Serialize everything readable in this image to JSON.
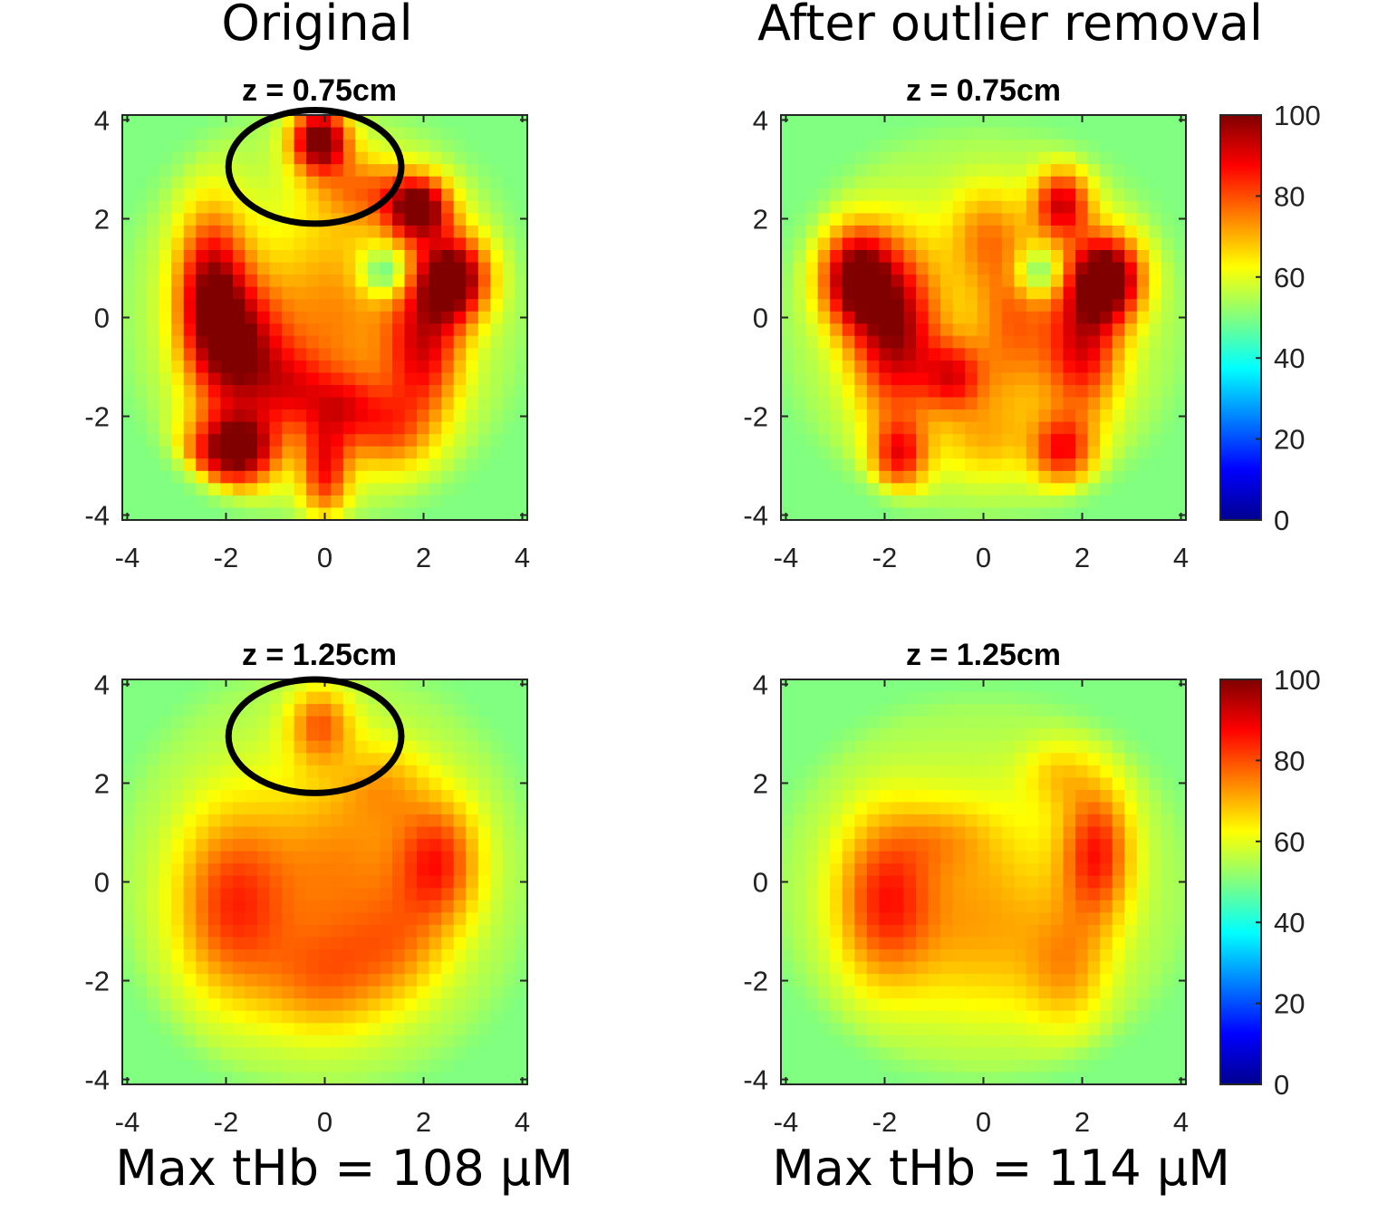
{
  "figure": {
    "column_titles": [
      "Original",
      "After outlier removal"
    ],
    "footers": [
      "Max tHb = 108 µM",
      "Max tHb = 114 µM"
    ]
  },
  "colors": {
    "colormap": "jet",
    "annotation_ellipse": "#000000",
    "background_low": "#80ff80"
  },
  "chart_data": [
    {
      "type": "heatmap",
      "title": "z = 0.75cm",
      "column": "Original",
      "xlim": [
        -4.1,
        4.1
      ],
      "ylim": [
        -4.1,
        4.1
      ],
      "xticks": [
        -4,
        -2,
        0,
        2,
        4
      ],
      "yticks": [
        -4,
        -2,
        0,
        2,
        4
      ],
      "clim": [
        0,
        100
      ],
      "grid": false,
      "base_value": 50,
      "mask": {
        "center": [
          0,
          0.1
        ],
        "radius_x": 3.9,
        "radius_y": 4.0
      },
      "blobs": [
        {
          "x": -2.3,
          "y": 0.4,
          "sx": 0.5,
          "sy": 1.2,
          "amp": 42
        },
        {
          "x": -1.6,
          "y": -0.8,
          "sx": 0.6,
          "sy": 1.0,
          "amp": 34
        },
        {
          "x": -2.1,
          "y": -2.7,
          "sx": 0.6,
          "sy": 0.5,
          "amp": 28
        },
        {
          "x": -1.6,
          "y": -2.7,
          "sx": 0.5,
          "sy": 0.5,
          "amp": 26
        },
        {
          "x": 0.0,
          "y": -3.1,
          "sx": 0.35,
          "sy": 0.7,
          "amp": 30
        },
        {
          "x": 0.4,
          "y": -1.8,
          "sx": 0.5,
          "sy": 0.5,
          "amp": 18
        },
        {
          "x": -0.6,
          "y": -1.5,
          "sx": 0.5,
          "sy": 0.6,
          "amp": 18
        },
        {
          "x": 1.9,
          "y": 2.2,
          "sx": 0.45,
          "sy": 0.45,
          "amp": 48
        },
        {
          "x": 2.6,
          "y": 0.8,
          "sx": 0.5,
          "sy": 0.6,
          "amp": 50
        },
        {
          "x": 2.0,
          "y": -0.6,
          "sx": 0.55,
          "sy": 1.0,
          "amp": 32
        },
        {
          "x": 1.3,
          "y": -2.3,
          "sx": 0.6,
          "sy": 0.6,
          "amp": 20
        },
        {
          "x": -0.1,
          "y": 3.6,
          "sx": 0.4,
          "sy": 0.45,
          "amp": 52
        },
        {
          "x": 0.8,
          "y": 2.6,
          "sx": 0.7,
          "sy": 0.5,
          "amp": 18
        },
        {
          "x": 0.2,
          "y": 0.0,
          "sx": 0.8,
          "sy": 1.4,
          "amp": 12
        },
        {
          "x": 1.2,
          "y": 0.9,
          "sx": 0.35,
          "sy": 0.35,
          "amp": -20
        }
      ],
      "annotation": {
        "shape": "ellipse",
        "cx": -0.2,
        "cy": 3.05,
        "rx": 1.75,
        "ry": 1.15
      }
    },
    {
      "type": "heatmap",
      "title": "z = 0.75cm",
      "column": "After outlier removal",
      "xlim": [
        -4.1,
        4.1
      ],
      "ylim": [
        -4.1,
        4.1
      ],
      "xticks": [
        -4,
        -2,
        0,
        2,
        4
      ],
      "yticks": [
        -4,
        -2,
        0,
        2,
        4
      ],
      "clim": [
        0,
        100
      ],
      "grid": false,
      "base_value": 50,
      "mask": {
        "center": [
          0,
          -0.1
        ],
        "radius_x": 3.9,
        "radius_y": 3.7
      },
      "blobs": [
        {
          "x": -2.6,
          "y": 0.8,
          "sx": 0.5,
          "sy": 0.7,
          "amp": 45
        },
        {
          "x": -1.8,
          "y": -0.3,
          "sx": 0.6,
          "sy": 1.2,
          "amp": 38
        },
        {
          "x": -1.7,
          "y": -2.8,
          "sx": 0.4,
          "sy": 0.5,
          "amp": 30
        },
        {
          "x": -0.6,
          "y": -1.2,
          "sx": 0.45,
          "sy": 0.5,
          "amp": 26
        },
        {
          "x": 0.0,
          "y": 1.7,
          "sx": 0.5,
          "sy": 0.7,
          "amp": 14
        },
        {
          "x": 0.0,
          "y": -2.5,
          "sx": 0.6,
          "sy": 0.6,
          "amp": 12
        },
        {
          "x": 1.6,
          "y": 2.3,
          "sx": 0.4,
          "sy": 0.5,
          "amp": 36
        },
        {
          "x": 2.5,
          "y": 0.8,
          "sx": 0.5,
          "sy": 0.6,
          "amp": 52
        },
        {
          "x": 2.0,
          "y": -0.6,
          "sx": 0.55,
          "sy": 1.0,
          "amp": 32
        },
        {
          "x": 1.6,
          "y": -2.7,
          "sx": 0.45,
          "sy": 0.5,
          "amp": 30
        },
        {
          "x": 0.6,
          "y": 0.0,
          "sx": 0.5,
          "sy": 1.2,
          "amp": 16
        },
        {
          "x": 1.1,
          "y": 0.9,
          "sx": 0.35,
          "sy": 0.35,
          "amp": -20
        }
      ]
    },
    {
      "type": "heatmap",
      "title": "z = 1.25cm",
      "column": "Original",
      "xlim": [
        -4.1,
        4.1
      ],
      "ylim": [
        -4.1,
        4.1
      ],
      "xticks": [
        -4,
        -2,
        0,
        2,
        4
      ],
      "yticks": [
        -4,
        -2,
        0,
        2,
        4
      ],
      "clim": [
        0,
        100
      ],
      "grid": false,
      "base_value": 50,
      "mask": {
        "center": [
          0,
          0.1
        ],
        "radius_x": 4.0,
        "radius_y": 4.1
      },
      "blobs": [
        {
          "x": -1.9,
          "y": -0.5,
          "sx": 0.8,
          "sy": 1.3,
          "amp": 24
        },
        {
          "x": 2.3,
          "y": 0.4,
          "sx": 0.6,
          "sy": 0.9,
          "amp": 26
        },
        {
          "x": -0.1,
          "y": 3.2,
          "sx": 0.45,
          "sy": 0.55,
          "amp": 22
        },
        {
          "x": 0.0,
          "y": -2.0,
          "sx": 0.9,
          "sy": 0.8,
          "amp": 16
        },
        {
          "x": 0.3,
          "y": 0.3,
          "sx": 1.0,
          "sy": 1.3,
          "amp": 12
        },
        {
          "x": 1.5,
          "y": -1.3,
          "sx": 0.7,
          "sy": 0.8,
          "amp": 12
        },
        {
          "x": 1.2,
          "y": 2.0,
          "sx": 0.6,
          "sy": 0.6,
          "amp": 10
        }
      ],
      "annotation": {
        "shape": "ellipse",
        "cx": -0.2,
        "cy": 2.95,
        "rx": 1.75,
        "ry": 1.15
      }
    },
    {
      "type": "heatmap",
      "title": "z = 1.25cm",
      "column": "After outlier removal",
      "xlim": [
        -4.1,
        4.1
      ],
      "ylim": [
        -4.1,
        4.1
      ],
      "xticks": [
        -4,
        -2,
        0,
        2,
        4
      ],
      "yticks": [
        -4,
        -2,
        0,
        2,
        4
      ],
      "clim": [
        0,
        100
      ],
      "grid": false,
      "base_value": 50,
      "mask": {
        "center": [
          0,
          -0.1
        ],
        "radius_x": 4.0,
        "radius_y": 3.6
      },
      "blobs": [
        {
          "x": -2.0,
          "y": -0.4,
          "sx": 0.7,
          "sy": 1.2,
          "amp": 26
        },
        {
          "x": 2.3,
          "y": 0.6,
          "sx": 0.5,
          "sy": 1.0,
          "amp": 28
        },
        {
          "x": 1.7,
          "y": -1.8,
          "sx": 0.6,
          "sy": 0.9,
          "amp": 14
        },
        {
          "x": 0.0,
          "y": -1.0,
          "sx": 1.0,
          "sy": 1.3,
          "amp": 10
        },
        {
          "x": 1.5,
          "y": 2.2,
          "sx": 0.5,
          "sy": 0.5,
          "amp": 10
        },
        {
          "x": -0.8,
          "y": 0.9,
          "sx": 0.7,
          "sy": 0.5,
          "amp": 8
        }
      ]
    }
  ],
  "colorbars": [
    {
      "name": "colorbar-top",
      "ticks": [
        0,
        20,
        40,
        60,
        80,
        100
      ],
      "range": [
        0,
        100
      ]
    },
    {
      "name": "colorbar-bottom",
      "ticks": [
        0,
        20,
        40,
        60,
        80,
        100
      ],
      "range": [
        0,
        100
      ]
    }
  ]
}
